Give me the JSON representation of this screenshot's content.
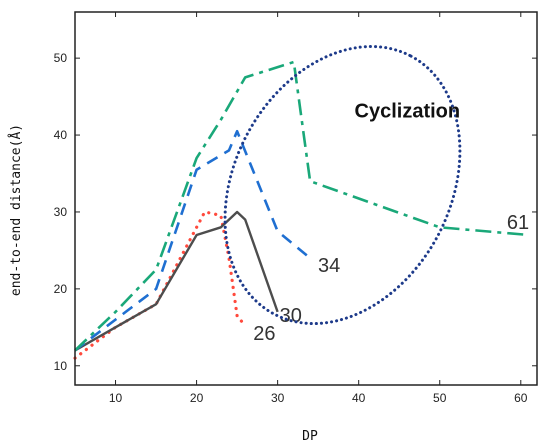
{
  "chart_data": {
    "type": "line",
    "title": "",
    "xlabel": "DP",
    "ylabel": "end-to-end distance(Å)",
    "xlim": [
      5,
      62
    ],
    "ylim": [
      7.5,
      56
    ],
    "xticks": [
      10,
      20,
      30,
      40,
      50,
      60
    ],
    "yticks": [
      10,
      20,
      30,
      40,
      50
    ],
    "grid": false,
    "series": [
      {
        "name": "26",
        "color": "#ff4a3d",
        "dash": "dotted",
        "x": [
          5,
          10,
          15,
          20,
          21,
          22,
          23,
          24,
          25,
          26
        ],
        "y": [
          11,
          15,
          18,
          28,
          30,
          29.8,
          29.5,
          24,
          16.5,
          15.2
        ]
      },
      {
        "name": "30",
        "color": "#4d4d4d",
        "dash": "solid",
        "x": [
          5,
          10,
          15,
          20,
          23,
          25,
          26,
          30
        ],
        "y": [
          12,
          15,
          18,
          27,
          28,
          30,
          29,
          17
        ]
      },
      {
        "name": "34",
        "color": "#1f6fd1",
        "dash": "dashed",
        "x": [
          5,
          10,
          15,
          20,
          24,
          25,
          30,
          34
        ],
        "y": [
          12,
          16,
          20,
          35.5,
          38,
          40.5,
          27.5,
          24
        ]
      },
      {
        "name": "61",
        "color": "#1aa879",
        "dash": "dashdot",
        "x": [
          5,
          10,
          15,
          20,
          23,
          26,
          32,
          34,
          50,
          61
        ],
        "y": [
          12,
          17,
          22.5,
          37,
          42,
          47.5,
          49.5,
          34,
          28,
          27
        ]
      }
    ],
    "annotations": [
      {
        "text": "Cyclization"
      }
    ],
    "highlight": {
      "shape": "ellipse",
      "color": "#1d3a8a",
      "style": "dotted"
    }
  }
}
